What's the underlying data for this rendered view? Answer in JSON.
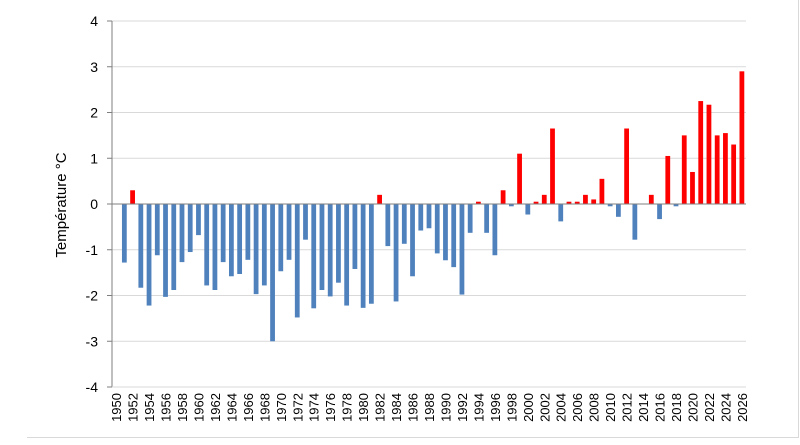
{
  "chart_data": {
    "type": "bar",
    "title": "",
    "xlabel": "",
    "ylabel": "Température °C",
    "ylim": [
      -4,
      4
    ],
    "yticks": [
      -4,
      -3,
      -2,
      -1,
      0,
      1,
      2,
      3,
      4
    ],
    "grid": true,
    "legend": "none",
    "colors": {
      "positive": "#ff0000",
      "negative": "#4f81bd",
      "grid": "#d9d9d9",
      "axis": "#7f7f7f"
    },
    "x": [
      1950,
      1951,
      1952,
      1953,
      1954,
      1955,
      1956,
      1957,
      1958,
      1959,
      1960,
      1961,
      1962,
      1963,
      1964,
      1965,
      1966,
      1967,
      1968,
      1969,
      1970,
      1971,
      1972,
      1973,
      1974,
      1975,
      1976,
      1977,
      1978,
      1979,
      1980,
      1981,
      1982,
      1983,
      1984,
      1985,
      1986,
      1987,
      1988,
      1989,
      1990,
      1991,
      1992,
      1993,
      1994,
      1995,
      1996,
      1997,
      1998,
      1999,
      2000,
      2001,
      2002,
      2003,
      2004,
      2005,
      2006,
      2007,
      2008,
      2009,
      2010,
      2011,
      2012,
      2013,
      2014,
      2015,
      2016,
      2017,
      2018,
      2019,
      2020,
      2021,
      2022,
      2023,
      2024,
      2025,
      2026
    ],
    "x_tick_labels": [
      "1950",
      "1952",
      "1954",
      "1956",
      "1958",
      "1960",
      "1962",
      "1964",
      "1966",
      "1968",
      "1970",
      "1972",
      "1974",
      "1976",
      "1978",
      "1980",
      "1982",
      "1984",
      "1986",
      "1988",
      "1990",
      "1992",
      "1994",
      "1996",
      "1998",
      "2000",
      "2002",
      "2004",
      "2006",
      "2008",
      "2010",
      "2012",
      "2014",
      "2016",
      "2018",
      "2020",
      "2022",
      "2024",
      "2026"
    ],
    "values": [
      0,
      -1.28,
      0.3,
      -1.83,
      -2.22,
      -1.12,
      -2.03,
      -1.88,
      -1.27,
      -1.05,
      -0.68,
      -1.78,
      -1.88,
      -1.27,
      -1.58,
      -1.53,
      -1.22,
      -1.97,
      -1.78,
      -3.0,
      -1.47,
      -1.22,
      -2.48,
      -0.78,
      -2.28,
      -1.88,
      -2.02,
      -1.72,
      -2.22,
      -1.42,
      -2.27,
      -2.18,
      0.2,
      -0.92,
      -2.13,
      -0.87,
      -1.58,
      -0.58,
      -0.53,
      -1.08,
      -1.23,
      -1.38,
      -1.98,
      -0.63,
      0.05,
      -0.63,
      -1.12,
      0.3,
      -0.05,
      1.1,
      -0.23,
      0.05,
      0.2,
      1.65,
      -0.38,
      0.05,
      0.05,
      0.2,
      0.1,
      0.55,
      -0.05,
      -0.28,
      1.65,
      -0.78,
      0,
      0.2,
      -0.33,
      1.05,
      -0.05,
      1.5,
      0.7,
      2.25,
      2.17,
      1.5,
      1.55,
      1.3,
      2.9
    ]
  }
}
